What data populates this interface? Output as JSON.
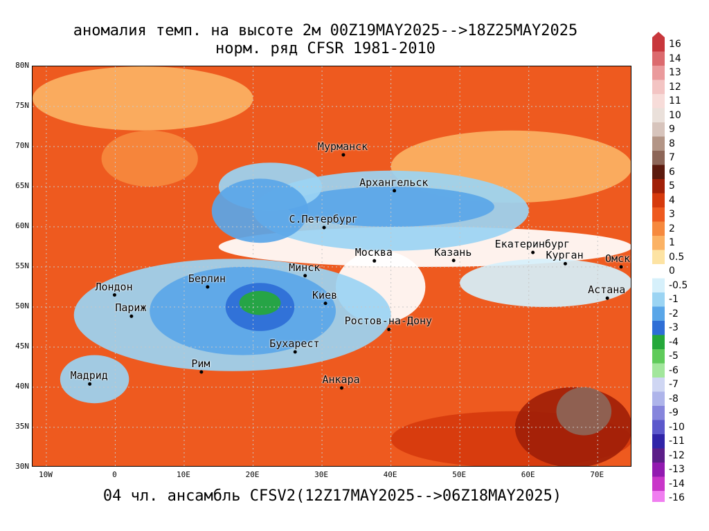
{
  "title_line1": "аномалия темп. на высоте 2м 00Z19MAY2025-->18Z25MAY2025",
  "title_line2": "норм. ряд CFSR 1981-2010",
  "footer": "04 чл. ансамбль CFSV2(12Z17MAY2025-->06Z18MAY2025)",
  "map": {
    "lon_range": [
      -12,
      75
    ],
    "lat_range": [
      30,
      80
    ],
    "lat_labels": [
      "80N",
      "75N",
      "70N",
      "65N",
      "60N",
      "55N",
      "50N",
      "45N",
      "40N",
      "35N",
      "30N"
    ],
    "lon_labels": [
      "10W",
      "0",
      "10E",
      "20E",
      "30E",
      "40E",
      "50E",
      "60E",
      "70E"
    ],
    "cities": [
      {
        "name": "Мурманск",
        "lon": 33.1,
        "lat": 68.97
      },
      {
        "name": "Архангельск",
        "lon": 40.5,
        "lat": 64.5
      },
      {
        "name": "С.Петербург",
        "lon": 30.3,
        "lat": 59.9
      },
      {
        "name": "Москва",
        "lon": 37.6,
        "lat": 55.75
      },
      {
        "name": "Казань",
        "lon": 49.1,
        "lat": 55.8
      },
      {
        "name": "Екатеринбург",
        "lon": 60.6,
        "lat": 56.8
      },
      {
        "name": "Курган",
        "lon": 65.3,
        "lat": 55.4
      },
      {
        "name": "Омск",
        "lon": 73.4,
        "lat": 55.0
      },
      {
        "name": "Астана",
        "lon": 71.4,
        "lat": 51.1
      },
      {
        "name": "Минск",
        "lon": 27.55,
        "lat": 53.9
      },
      {
        "name": "Берлин",
        "lon": 13.4,
        "lat": 52.5
      },
      {
        "name": "Лондон",
        "lon": -0.1,
        "lat": 51.5
      },
      {
        "name": "Париж",
        "lon": 2.35,
        "lat": 48.85
      },
      {
        "name": "Киев",
        "lon": 30.5,
        "lat": 50.45
      },
      {
        "name": "Ростов-на-Дону",
        "lon": 39.7,
        "lat": 47.2
      },
      {
        "name": "Бухарест",
        "lon": 26.1,
        "lat": 44.4
      },
      {
        "name": "Рим",
        "lon": 12.5,
        "lat": 41.9
      },
      {
        "name": "Мадрид",
        "lon": -3.7,
        "lat": 40.4
      },
      {
        "name": "Анкара",
        "lon": 32.85,
        "lat": 39.9
      }
    ],
    "anomaly_regions": [
      {
        "anomaly": 3,
        "lon": [
          -12,
          75
        ],
        "lat": [
          30,
          80
        ]
      },
      {
        "anomaly": 1,
        "lon": [
          -12,
          20
        ],
        "lat": [
          72,
          80
        ]
      },
      {
        "anomaly": 2,
        "lon": [
          -2,
          12
        ],
        "lat": [
          65,
          72
        ]
      },
      {
        "anomaly": 3,
        "lon": [
          48,
          75
        ],
        "lat": [
          73,
          80
        ]
      },
      {
        "anomaly": 1,
        "lon": [
          40,
          75
        ],
        "lat": [
          63,
          72
        ]
      },
      {
        "anomaly": 0,
        "lon": [
          15,
          75
        ],
        "lat": [
          55,
          60
        ]
      },
      {
        "anomaly": -1,
        "lon": [
          20,
          60
        ],
        "lat": [
          57,
          67
        ]
      },
      {
        "anomaly": -2,
        "lon": [
          25,
          55
        ],
        "lat": [
          60,
          65
        ]
      },
      {
        "anomaly": -1,
        "lon": [
          15,
          30
        ],
        "lat": [
          62,
          68
        ]
      },
      {
        "anomaly": -2,
        "lon": [
          14,
          28
        ],
        "lat": [
          58,
          66
        ]
      },
      {
        "anomaly": 0,
        "lon": [
          32,
          45
        ],
        "lat": [
          48,
          57
        ]
      },
      {
        "anomaly": -0.5,
        "lon": [
          50,
          75
        ],
        "lat": [
          50,
          56
        ]
      },
      {
        "anomaly": -1,
        "lon": [
          -6,
          40
        ],
        "lat": [
          42,
          56
        ]
      },
      {
        "anomaly": -2,
        "lon": [
          5,
          32
        ],
        "lat": [
          44,
          55
        ]
      },
      {
        "anomaly": -3,
        "lon": [
          16,
          26
        ],
        "lat": [
          47,
          53
        ]
      },
      {
        "anomaly": -4,
        "lon": [
          18,
          24
        ],
        "lat": [
          49,
          52
        ]
      },
      {
        "anomaly": -1,
        "lon": [
          -8,
          2
        ],
        "lat": [
          38,
          44
        ]
      },
      {
        "anomaly": 3,
        "lon": [
          -10,
          40
        ],
        "lat": [
          30,
          36
        ]
      },
      {
        "anomaly": 4,
        "lon": [
          40,
          75
        ],
        "lat": [
          30,
          37
        ]
      },
      {
        "anomaly": 5,
        "lon": [
          58,
          75
        ],
        "lat": [
          30,
          40
        ]
      },
      {
        "anomaly": 7,
        "lon": [
          64,
          72
        ],
        "lat": [
          34,
          40
        ]
      }
    ]
  },
  "legend": {
    "values": [
      "16",
      "14",
      "13",
      "12",
      "11",
      "10",
      "9",
      "8",
      "7",
      "6",
      "5",
      "4",
      "3",
      "2",
      "1",
      "0.5",
      "0",
      "-0.5",
      "-1",
      "-2",
      "-3",
      "-4",
      "-5",
      "-6",
      "-7",
      "-8",
      "-9",
      "-10",
      "-11",
      "-12",
      "-13",
      "-14",
      "-16"
    ],
    "colors": [
      "#c8373c",
      "#dc6a6e",
      "#ea9a9c",
      "#f3c4c3",
      "#f7dcd9",
      "#eae0da",
      "#d7c4bc",
      "#b39586",
      "#8d6658",
      "#5c1a0e",
      "#a12008",
      "#d63a0d",
      "#ee5a1f",
      "#f6893e",
      "#fbb264",
      "#fde3a3",
      "#ffffff",
      "#d6f0fb",
      "#9bd4f3",
      "#5aa6e8",
      "#2e6ed6",
      "#25a83a",
      "#5fcb5a",
      "#a2e69c",
      "#cfd6f3",
      "#aeb4ea",
      "#8685dc",
      "#5c58cc",
      "#3024a8",
      "#5c1e88",
      "#921ab0",
      "#c936c9",
      "#f07ef0"
    ]
  }
}
